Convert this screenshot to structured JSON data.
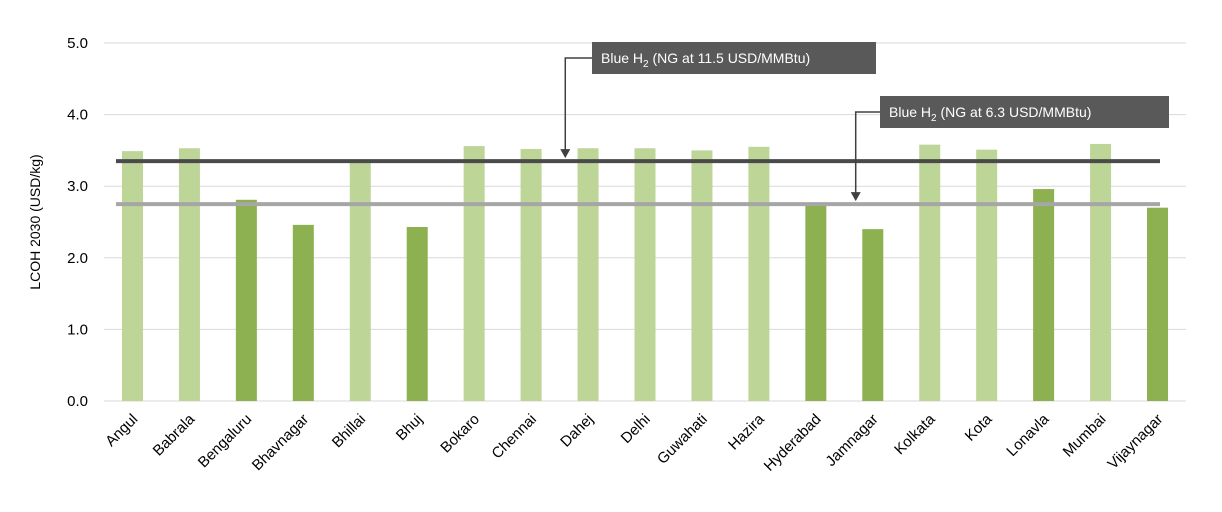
{
  "chart_data": {
    "type": "bar",
    "title": "",
    "xlabel": "",
    "ylabel": "LCOH 2030  (USD/kg)",
    "ylim": [
      0,
      5
    ],
    "y_ticks": [
      "0.0",
      "1.0",
      "2.0",
      "3.0",
      "4.0",
      "5.0"
    ],
    "grid": true,
    "categories": [
      "Angul",
      "Babrala",
      "Bengaluru",
      "Bhavnagar",
      "Bhillai",
      "Bhuj",
      "Bokaro",
      "Chennai",
      "Dahej",
      "Delhi",
      "Guwahati",
      "Hazira",
      "Hyderabad",
      "Jamnagar",
      "Kolkata",
      "Kota",
      "Lonavla",
      "Mumbai",
      "Vijaynagar"
    ],
    "values": [
      3.49,
      3.53,
      2.81,
      2.46,
      3.33,
      2.43,
      3.56,
      3.52,
      3.53,
      3.53,
      3.5,
      3.55,
      2.73,
      2.4,
      3.58,
      3.51,
      2.96,
      3.59,
      2.7
    ],
    "bar_shades": [
      "light",
      "light",
      "dark",
      "dark",
      "light",
      "dark",
      "light",
      "light",
      "light",
      "light",
      "light",
      "light",
      "dark",
      "dark",
      "light",
      "light",
      "dark",
      "light",
      "dark"
    ],
    "colors": {
      "light": "#bdd596",
      "dark": "#8db050",
      "grid": "#d9d9d9"
    },
    "reference_lines": [
      {
        "prefix": "Blue H",
        "sub": "2",
        "suffix": " (NG at 11.5 USD/MMBtu)",
        "value": 3.35,
        "color": "#4a4a4a",
        "label_bg": "#595959",
        "arrow_to_category": 7.6
      },
      {
        "prefix": "Blue H",
        "sub": "2",
        "suffix": " (NG at 6.3 USD/MMBtu)",
        "value": 2.75,
        "color": "#a6a6a6",
        "label_bg": "#595959",
        "arrow_to_category": 12.7
      }
    ]
  }
}
